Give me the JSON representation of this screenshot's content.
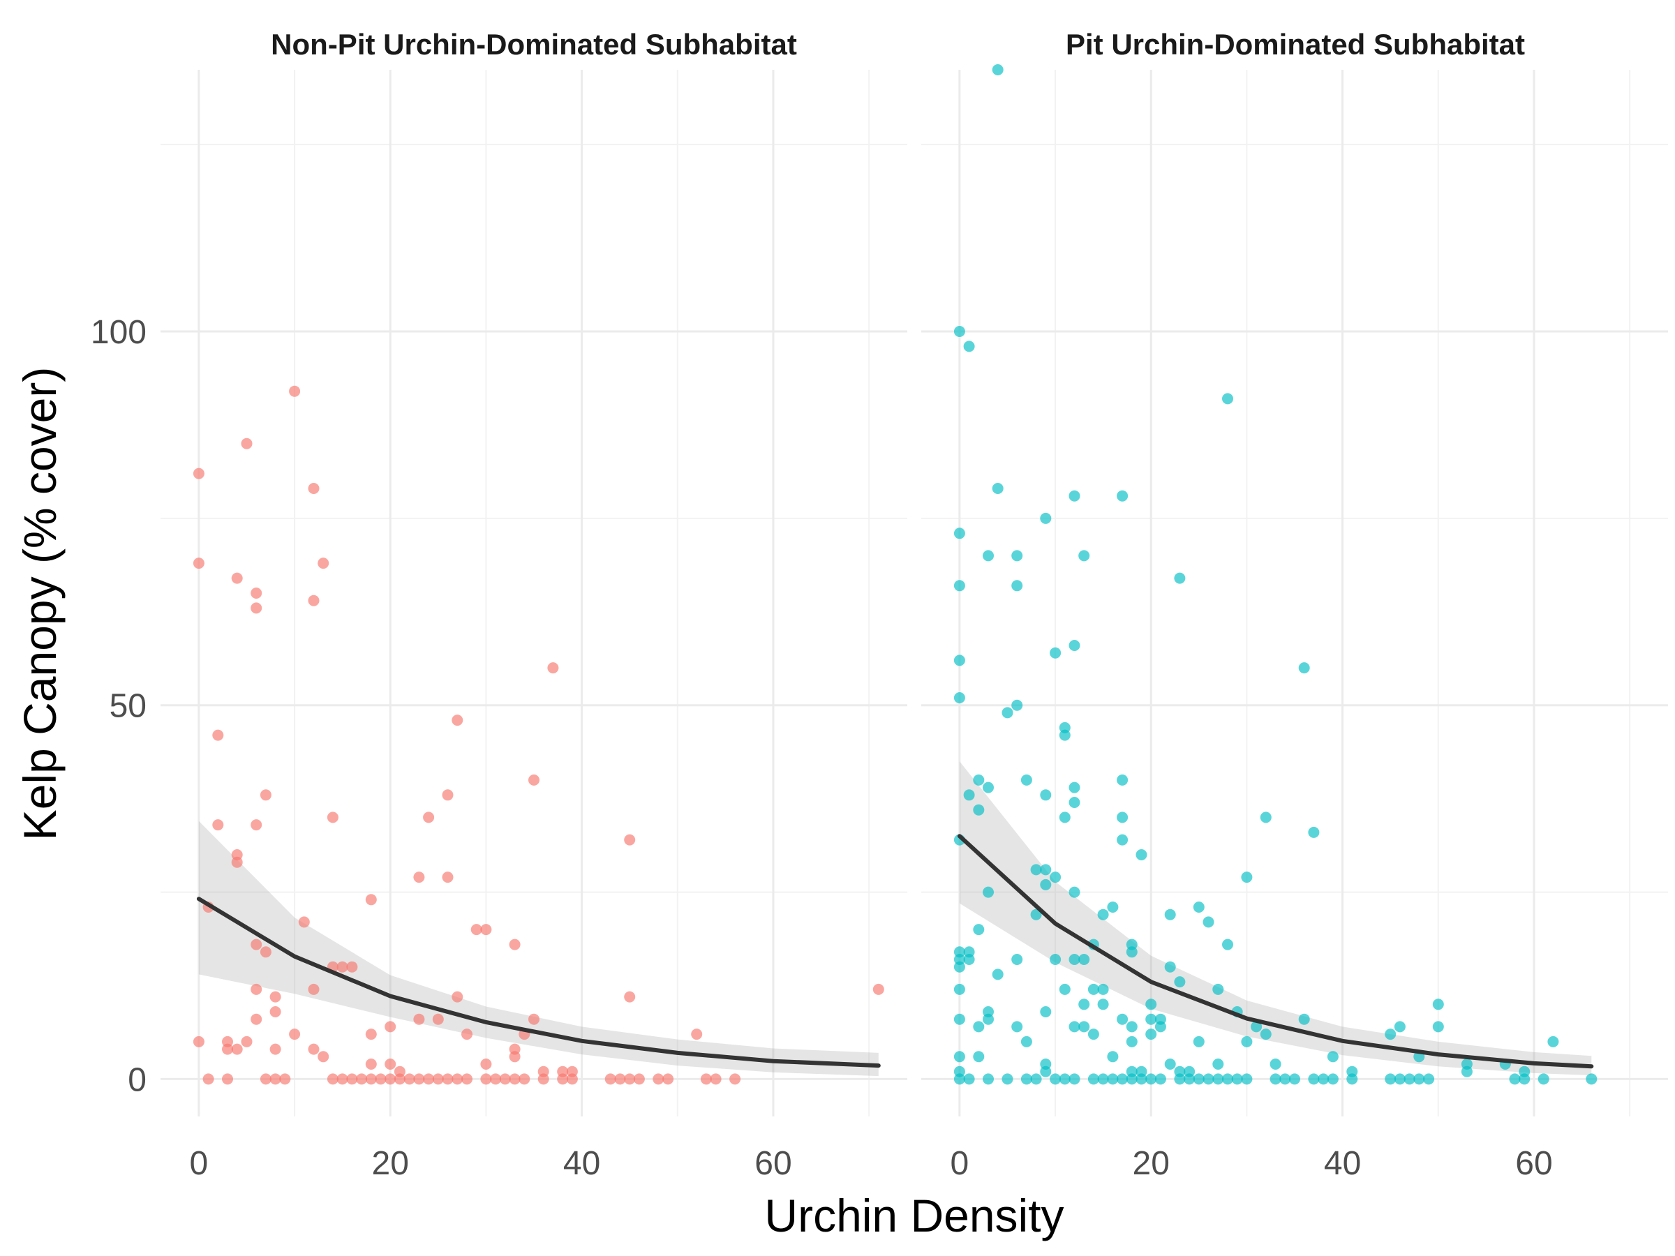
{
  "chart_data": {
    "type": "scatter",
    "xlabel": "Urchin Density",
    "ylabel": "Kelp Canopy (% cover)",
    "xlim": [
      -4,
      74
    ],
    "ylim": [
      -5,
      135
    ],
    "x_ticks": [
      0,
      20,
      40,
      60
    ],
    "y_ticks": [
      0,
      50,
      100
    ],
    "grid": true,
    "legend": "none",
    "fit": "exponential decay with confidence band",
    "panels": [
      {
        "title": "Non-Pit Urchin-Dominated Subhabitat",
        "color": "#F8766D",
        "points": [
          [
            0,
            81
          ],
          [
            0,
            69
          ],
          [
            0,
            5
          ],
          [
            1,
            23
          ],
          [
            1,
            0
          ],
          [
            2,
            46
          ],
          [
            2,
            34
          ],
          [
            3,
            5
          ],
          [
            3,
            4
          ],
          [
            3,
            0
          ],
          [
            4,
            67
          ],
          [
            4,
            30
          ],
          [
            4,
            29
          ],
          [
            4,
            4
          ],
          [
            5,
            85
          ],
          [
            5,
            5
          ],
          [
            6,
            65
          ],
          [
            6,
            63
          ],
          [
            6,
            34
          ],
          [
            6,
            18
          ],
          [
            6,
            12
          ],
          [
            6,
            8
          ],
          [
            7,
            38
          ],
          [
            7,
            17
          ],
          [
            7,
            0
          ],
          [
            8,
            11
          ],
          [
            8,
            9
          ],
          [
            8,
            4
          ],
          [
            8,
            0
          ],
          [
            9,
            0
          ],
          [
            10,
            92
          ],
          [
            10,
            6
          ],
          [
            11,
            21
          ],
          [
            12,
            79
          ],
          [
            12,
            64
          ],
          [
            12,
            12
          ],
          [
            12,
            4
          ],
          [
            13,
            69
          ],
          [
            13,
            3
          ],
          [
            14,
            35
          ],
          [
            14,
            15
          ],
          [
            14,
            0
          ],
          [
            15,
            15
          ],
          [
            15,
            0
          ],
          [
            16,
            15
          ],
          [
            16,
            0
          ],
          [
            17,
            0
          ],
          [
            18,
            24
          ],
          [
            18,
            6
          ],
          [
            18,
            2
          ],
          [
            18,
            0
          ],
          [
            19,
            0
          ],
          [
            20,
            7
          ],
          [
            20,
            2
          ],
          [
            20,
            0
          ],
          [
            21,
            1
          ],
          [
            21,
            0
          ],
          [
            22,
            0
          ],
          [
            23,
            27
          ],
          [
            23,
            8
          ],
          [
            23,
            0
          ],
          [
            24,
            35
          ],
          [
            24,
            0
          ],
          [
            25,
            8
          ],
          [
            25,
            0
          ],
          [
            26,
            38
          ],
          [
            26,
            27
          ],
          [
            26,
            0
          ],
          [
            27,
            48
          ],
          [
            27,
            11
          ],
          [
            27,
            0
          ],
          [
            28,
            6
          ],
          [
            28,
            0
          ],
          [
            29,
            20
          ],
          [
            30,
            20
          ],
          [
            30,
            2
          ],
          [
            30,
            0
          ],
          [
            31,
            0
          ],
          [
            32,
            0
          ],
          [
            33,
            18
          ],
          [
            33,
            4
          ],
          [
            33,
            3
          ],
          [
            33,
            0
          ],
          [
            34,
            6
          ],
          [
            34,
            0
          ],
          [
            35,
            40
          ],
          [
            35,
            8
          ],
          [
            36,
            1
          ],
          [
            36,
            0
          ],
          [
            37,
            55
          ],
          [
            38,
            1
          ],
          [
            38,
            0
          ],
          [
            39,
            1
          ],
          [
            39,
            0
          ],
          [
            43,
            0
          ],
          [
            44,
            0
          ],
          [
            45,
            32
          ],
          [
            45,
            11
          ],
          [
            45,
            0
          ],
          [
            46,
            0
          ],
          [
            48,
            0
          ],
          [
            49,
            0
          ],
          [
            52,
            6
          ],
          [
            53,
            0
          ],
          [
            54,
            0
          ],
          [
            56,
            0
          ],
          [
            71,
            12
          ]
        ],
        "fit_line": [
          [
            0,
            24.1
          ],
          [
            10,
            16.4
          ],
          [
            20,
            11.1
          ],
          [
            30,
            7.6
          ],
          [
            40,
            5.1
          ],
          [
            50,
            3.5
          ],
          [
            60,
            2.4
          ],
          [
            71,
            1.8
          ]
        ],
        "ci_lower": [
          [
            0,
            14.0
          ],
          [
            10,
            11.4
          ],
          [
            20,
            8.3
          ],
          [
            30,
            5.5
          ],
          [
            40,
            3.3
          ],
          [
            50,
            1.8
          ],
          [
            60,
            0.9
          ],
          [
            71,
            0.4
          ]
        ],
        "ci_upper": [
          [
            0,
            34.5
          ],
          [
            10,
            21.6
          ],
          [
            20,
            13.9
          ],
          [
            30,
            9.7
          ],
          [
            40,
            7.0
          ],
          [
            50,
            5.3
          ],
          [
            60,
            4.1
          ],
          [
            71,
            3.5
          ]
        ]
      },
      {
        "title": "Pit Urchin-Dominated Subhabitat",
        "color": "#00BFC4",
        "points": [
          [
            0,
            100
          ],
          [
            0,
            73
          ],
          [
            0,
            66
          ],
          [
            0,
            56
          ],
          [
            0,
            51
          ],
          [
            0,
            32
          ],
          [
            0,
            17
          ],
          [
            0,
            16
          ],
          [
            0,
            15
          ],
          [
            0,
            12
          ],
          [
            0,
            8
          ],
          [
            0,
            3
          ],
          [
            0,
            1
          ],
          [
            0,
            0
          ],
          [
            1,
            98
          ],
          [
            1,
            38
          ],
          [
            1,
            17
          ],
          [
            1,
            16
          ],
          [
            1,
            0
          ],
          [
            2,
            40
          ],
          [
            2,
            36
          ],
          [
            2,
            20
          ],
          [
            2,
            7
          ],
          [
            2,
            3
          ],
          [
            3,
            70
          ],
          [
            3,
            39
          ],
          [
            3,
            25
          ],
          [
            3,
            9
          ],
          [
            3,
            8
          ],
          [
            3,
            0
          ],
          [
            4,
            135
          ],
          [
            4,
            79
          ],
          [
            4,
            14
          ],
          [
            5,
            49
          ],
          [
            5,
            0
          ],
          [
            6,
            70
          ],
          [
            6,
            66
          ],
          [
            6,
            50
          ],
          [
            6,
            16
          ],
          [
            6,
            7
          ],
          [
            7,
            40
          ],
          [
            7,
            5
          ],
          [
            7,
            0
          ],
          [
            8,
            28
          ],
          [
            8,
            22
          ],
          [
            8,
            0
          ],
          [
            9,
            75
          ],
          [
            9,
            38
          ],
          [
            9,
            28
          ],
          [
            9,
            26
          ],
          [
            9,
            9
          ],
          [
            9,
            2
          ],
          [
            9,
            1
          ],
          [
            10,
            57
          ],
          [
            10,
            27
          ],
          [
            10,
            16
          ],
          [
            10,
            0
          ],
          [
            11,
            47
          ],
          [
            11,
            46
          ],
          [
            11,
            35
          ],
          [
            11,
            12
          ],
          [
            11,
            0
          ],
          [
            12,
            78
          ],
          [
            12,
            58
          ],
          [
            12,
            39
          ],
          [
            12,
            37
          ],
          [
            12,
            25
          ],
          [
            12,
            16
          ],
          [
            12,
            7
          ],
          [
            12,
            0
          ],
          [
            13,
            70
          ],
          [
            13,
            16
          ],
          [
            13,
            10
          ],
          [
            13,
            7
          ],
          [
            14,
            18
          ],
          [
            14,
            12
          ],
          [
            14,
            6
          ],
          [
            14,
            0
          ],
          [
            15,
            22
          ],
          [
            15,
            12
          ],
          [
            15,
            10
          ],
          [
            15,
            0
          ],
          [
            16,
            23
          ],
          [
            16,
            3
          ],
          [
            16,
            0
          ],
          [
            17,
            78
          ],
          [
            17,
            40
          ],
          [
            17,
            35
          ],
          [
            17,
            32
          ],
          [
            17,
            8
          ],
          [
            17,
            0
          ],
          [
            18,
            18
          ],
          [
            18,
            17
          ],
          [
            18,
            7
          ],
          [
            18,
            5
          ],
          [
            18,
            1
          ],
          [
            18,
            0
          ],
          [
            19,
            30
          ],
          [
            19,
            1
          ],
          [
            19,
            0
          ],
          [
            20,
            10
          ],
          [
            20,
            8
          ],
          [
            20,
            6
          ],
          [
            20,
            0
          ],
          [
            21,
            8
          ],
          [
            21,
            7
          ],
          [
            21,
            0
          ],
          [
            22,
            22
          ],
          [
            22,
            15
          ],
          [
            22,
            2
          ],
          [
            23,
            67
          ],
          [
            23,
            13
          ],
          [
            23,
            1
          ],
          [
            23,
            0
          ],
          [
            24,
            1
          ],
          [
            24,
            0
          ],
          [
            25,
            23
          ],
          [
            25,
            5
          ],
          [
            25,
            0
          ],
          [
            26,
            21
          ],
          [
            26,
            0
          ],
          [
            27,
            12
          ],
          [
            27,
            2
          ],
          [
            27,
            0
          ],
          [
            28,
            91
          ],
          [
            28,
            18
          ],
          [
            28,
            0
          ],
          [
            29,
            9
          ],
          [
            29,
            0
          ],
          [
            30,
            27
          ],
          [
            30,
            5
          ],
          [
            30,
            0
          ],
          [
            31,
            7
          ],
          [
            32,
            35
          ],
          [
            32,
            6
          ],
          [
            33,
            2
          ],
          [
            33,
            0
          ],
          [
            34,
            0
          ],
          [
            35,
            0
          ],
          [
            36,
            55
          ],
          [
            36,
            8
          ],
          [
            37,
            33
          ],
          [
            37,
            0
          ],
          [
            38,
            0
          ],
          [
            39,
            3
          ],
          [
            39,
            0
          ],
          [
            41,
            1
          ],
          [
            41,
            0
          ],
          [
            45,
            6
          ],
          [
            45,
            0
          ],
          [
            46,
            7
          ],
          [
            46,
            0
          ],
          [
            47,
            0
          ],
          [
            48,
            3
          ],
          [
            48,
            0
          ],
          [
            49,
            0
          ],
          [
            50,
            10
          ],
          [
            50,
            7
          ],
          [
            53,
            2
          ],
          [
            53,
            1
          ],
          [
            57,
            2
          ],
          [
            58,
            0
          ],
          [
            59,
            1
          ],
          [
            59,
            0
          ],
          [
            61,
            0
          ],
          [
            62,
            5
          ],
          [
            66,
            0
          ]
        ],
        "fit_line": [
          [
            0,
            32.5
          ],
          [
            10,
            20.8
          ],
          [
            20,
            13.0
          ],
          [
            30,
            8.1
          ],
          [
            40,
            5.1
          ],
          [
            50,
            3.3
          ],
          [
            60,
            2.1
          ],
          [
            66,
            1.7
          ]
        ],
        "ci_lower": [
          [
            0,
            23.5
          ],
          [
            10,
            15.6
          ],
          [
            20,
            9.4
          ],
          [
            30,
            5.7
          ],
          [
            40,
            3.2
          ],
          [
            50,
            1.7
          ],
          [
            60,
            0.8
          ],
          [
            66,
            0.5
          ]
        ],
        "ci_upper": [
          [
            0,
            42.5
          ],
          [
            10,
            26.4
          ],
          [
            20,
            16.5
          ],
          [
            30,
            10.5
          ],
          [
            40,
            7.0
          ],
          [
            50,
            5.0
          ],
          [
            60,
            3.6
          ],
          [
            66,
            3.1
          ]
        ]
      }
    ]
  }
}
